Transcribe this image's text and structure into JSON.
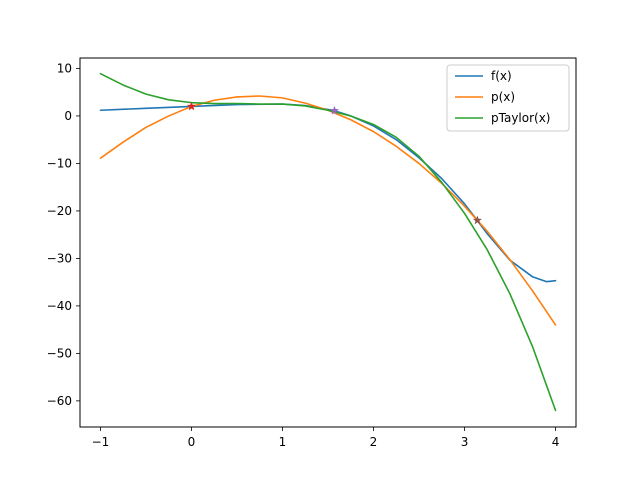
{
  "chart_data": {
    "type": "line",
    "title": "",
    "xlabel": "",
    "ylabel": "",
    "xlim": [
      -1.225,
      4.225
    ],
    "ylim": [
      -65.5,
      12.2
    ],
    "x_ticks": [
      -1,
      0,
      1,
      2,
      3,
      4
    ],
    "y_ticks": [
      10,
      0,
      -10,
      -20,
      -30,
      -40,
      -50,
      -60
    ],
    "legend_position": "top-right",
    "grid": false,
    "series": [
      {
        "name": "f(x)",
        "color": "#1f77b4",
        "x": [
          -1,
          -0.5,
          0,
          0.5,
          1,
          1.25,
          1.57,
          1.75,
          2,
          2.25,
          2.5,
          2.75,
          3,
          3.14,
          3.25,
          3.5,
          3.75,
          3.9,
          4
        ],
        "y": [
          1.2,
          1.6,
          2.0,
          2.4,
          2.5,
          2.2,
          1.1,
          0.0,
          -2.1,
          -5.0,
          -8.8,
          -13.2,
          -18.5,
          -22.0,
          -24.8,
          -30.4,
          -33.9,
          -34.9,
          -34.7
        ]
      },
      {
        "name": "p(x)",
        "color": "#ff7f0e",
        "x": [
          -1,
          -0.75,
          -0.5,
          -0.25,
          0,
          0.25,
          0.5,
          0.75,
          1,
          1.25,
          1.5,
          1.75,
          2,
          2.25,
          2.5,
          2.75,
          3,
          3.25,
          3.5,
          3.75,
          4
        ],
        "y": [
          -8.9,
          -5.5,
          -2.4,
          0.0,
          2.0,
          3.3,
          4.0,
          4.2,
          3.8,
          2.7,
          1.2,
          -0.8,
          -3.3,
          -6.4,
          -10.0,
          -14.2,
          -19.0,
          -24.3,
          -30.3,
          -36.9,
          -44.0
        ]
      },
      {
        "name": "pTaylor(x)",
        "color": "#2ca02c",
        "x": [
          -1,
          -0.75,
          -0.5,
          -0.25,
          0,
          0.25,
          0.5,
          0.75,
          1,
          1.25,
          1.5,
          1.75,
          2,
          2.25,
          2.5,
          2.75,
          3,
          3.25,
          3.5,
          3.75,
          4
        ],
        "y": [
          8.9,
          6.5,
          4.6,
          3.4,
          2.8,
          2.6,
          2.6,
          2.5,
          2.5,
          2.1,
          1.2,
          0.0,
          -1.8,
          -4.5,
          -8.5,
          -14.0,
          -20.5,
          -28.2,
          -37.5,
          -48.7,
          -62.0
        ]
      }
    ],
    "markers": [
      {
        "x": 0,
        "y": 2.0,
        "color": "#d62728"
      },
      {
        "x": 1.5708,
        "y": 1.1,
        "color": "#9467bd"
      },
      {
        "x": 3.1416,
        "y": -22.0,
        "color": "#8c564b"
      }
    ]
  }
}
